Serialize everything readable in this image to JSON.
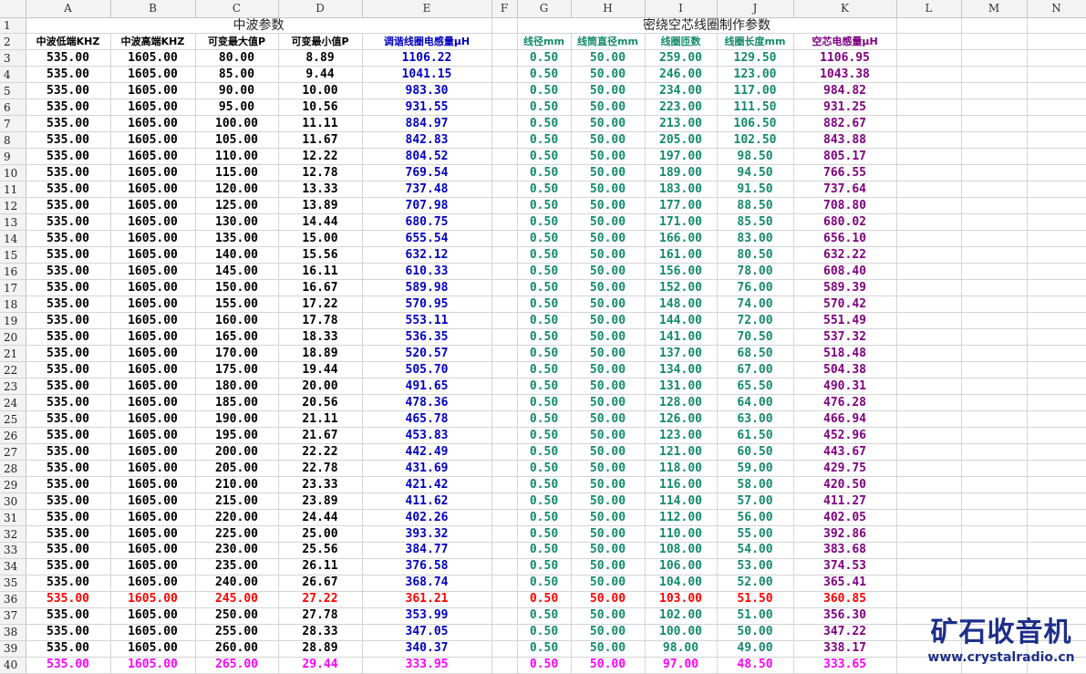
{
  "columns": [
    "A",
    "B",
    "C",
    "D",
    "E",
    "F",
    "G",
    "H",
    "I",
    "J",
    "K",
    "L",
    "M",
    "N"
  ],
  "row1": {
    "left_title": "中波参数",
    "right_title": "密绕空芯线圈制作参数"
  },
  "headers": {
    "A": "中波低端KHZ",
    "B": "中波高端KHZ",
    "C": "可变最大值P",
    "D": "可变最小值P",
    "E": "调谐线圈电感量μH",
    "G": "线径mm",
    "H": "线筒直径mm",
    "I": "线圈匝数",
    "J": "线圈长度mm",
    "K": "空芯电感量μH"
  },
  "colors": {
    "black": "#000000",
    "blue": "#0000c0",
    "green": "#138a6b",
    "purple": "#800080",
    "red": "#ff0000",
    "magenta": "#ff00ff"
  },
  "rows": [
    {
      "n": "3",
      "A": "535.00",
      "B": "1605.00",
      "C": "80.00",
      "D": "8.89",
      "E": "1106.22",
      "G": "0.50",
      "H": "50.00",
      "I": "259.00",
      "J": "129.50",
      "K": "1106.95"
    },
    {
      "n": "4",
      "A": "535.00",
      "B": "1605.00",
      "C": "85.00",
      "D": "9.44",
      "E": "1041.15",
      "G": "0.50",
      "H": "50.00",
      "I": "246.00",
      "J": "123.00",
      "K": "1043.38"
    },
    {
      "n": "5",
      "A": "535.00",
      "B": "1605.00",
      "C": "90.00",
      "D": "10.00",
      "E": "983.30",
      "G": "0.50",
      "H": "50.00",
      "I": "234.00",
      "J": "117.00",
      "K": "984.82"
    },
    {
      "n": "6",
      "A": "535.00",
      "B": "1605.00",
      "C": "95.00",
      "D": "10.56",
      "E": "931.55",
      "G": "0.50",
      "H": "50.00",
      "I": "223.00",
      "J": "111.50",
      "K": "931.25"
    },
    {
      "n": "7",
      "A": "535.00",
      "B": "1605.00",
      "C": "100.00",
      "D": "11.11",
      "E": "884.97",
      "G": "0.50",
      "H": "50.00",
      "I": "213.00",
      "J": "106.50",
      "K": "882.67"
    },
    {
      "n": "8",
      "A": "535.00",
      "B": "1605.00",
      "C": "105.00",
      "D": "11.67",
      "E": "842.83",
      "G": "0.50",
      "H": "50.00",
      "I": "205.00",
      "J": "102.50",
      "K": "843.88"
    },
    {
      "n": "9",
      "A": "535.00",
      "B": "1605.00",
      "C": "110.00",
      "D": "12.22",
      "E": "804.52",
      "G": "0.50",
      "H": "50.00",
      "I": "197.00",
      "J": "98.50",
      "K": "805.17"
    },
    {
      "n": "10",
      "A": "535.00",
      "B": "1605.00",
      "C": "115.00",
      "D": "12.78",
      "E": "769.54",
      "G": "0.50",
      "H": "50.00",
      "I": "189.00",
      "J": "94.50",
      "K": "766.55"
    },
    {
      "n": "11",
      "A": "535.00",
      "B": "1605.00",
      "C": "120.00",
      "D": "13.33",
      "E": "737.48",
      "G": "0.50",
      "H": "50.00",
      "I": "183.00",
      "J": "91.50",
      "K": "737.64"
    },
    {
      "n": "12",
      "A": "535.00",
      "B": "1605.00",
      "C": "125.00",
      "D": "13.89",
      "E": "707.98",
      "G": "0.50",
      "H": "50.00",
      "I": "177.00",
      "J": "88.50",
      "K": "708.80"
    },
    {
      "n": "13",
      "A": "535.00",
      "B": "1605.00",
      "C": "130.00",
      "D": "14.44",
      "E": "680.75",
      "G": "0.50",
      "H": "50.00",
      "I": "171.00",
      "J": "85.50",
      "K": "680.02"
    },
    {
      "n": "14",
      "A": "535.00",
      "B": "1605.00",
      "C": "135.00",
      "D": "15.00",
      "E": "655.54",
      "G": "0.50",
      "H": "50.00",
      "I": "166.00",
      "J": "83.00",
      "K": "656.10"
    },
    {
      "n": "15",
      "A": "535.00",
      "B": "1605.00",
      "C": "140.00",
      "D": "15.56",
      "E": "632.12",
      "G": "0.50",
      "H": "50.00",
      "I": "161.00",
      "J": "80.50",
      "K": "632.22"
    },
    {
      "n": "16",
      "A": "535.00",
      "B": "1605.00",
      "C": "145.00",
      "D": "16.11",
      "E": "610.33",
      "G": "0.50",
      "H": "50.00",
      "I": "156.00",
      "J": "78.00",
      "K": "608.40"
    },
    {
      "n": "17",
      "A": "535.00",
      "B": "1605.00",
      "C": "150.00",
      "D": "16.67",
      "E": "589.98",
      "G": "0.50",
      "H": "50.00",
      "I": "152.00",
      "J": "76.00",
      "K": "589.39"
    },
    {
      "n": "18",
      "A": "535.00",
      "B": "1605.00",
      "C": "155.00",
      "D": "17.22",
      "E": "570.95",
      "G": "0.50",
      "H": "50.00",
      "I": "148.00",
      "J": "74.00",
      "K": "570.42"
    },
    {
      "n": "19",
      "A": "535.00",
      "B": "1605.00",
      "C": "160.00",
      "D": "17.78",
      "E": "553.11",
      "G": "0.50",
      "H": "50.00",
      "I": "144.00",
      "J": "72.00",
      "K": "551.49"
    },
    {
      "n": "20",
      "A": "535.00",
      "B": "1605.00",
      "C": "165.00",
      "D": "18.33",
      "E": "536.35",
      "G": "0.50",
      "H": "50.00",
      "I": "141.00",
      "J": "70.50",
      "K": "537.32"
    },
    {
      "n": "21",
      "A": "535.00",
      "B": "1605.00",
      "C": "170.00",
      "D": "18.89",
      "E": "520.57",
      "G": "0.50",
      "H": "50.00",
      "I": "137.00",
      "J": "68.50",
      "K": "518.48"
    },
    {
      "n": "22",
      "A": "535.00",
      "B": "1605.00",
      "C": "175.00",
      "D": "19.44",
      "E": "505.70",
      "G": "0.50",
      "H": "50.00",
      "I": "134.00",
      "J": "67.00",
      "K": "504.38"
    },
    {
      "n": "23",
      "A": "535.00",
      "B": "1605.00",
      "C": "180.00",
      "D": "20.00",
      "E": "491.65",
      "G": "0.50",
      "H": "50.00",
      "I": "131.00",
      "J": "65.50",
      "K": "490.31"
    },
    {
      "n": "24",
      "A": "535.00",
      "B": "1605.00",
      "C": "185.00",
      "D": "20.56",
      "E": "478.36",
      "G": "0.50",
      "H": "50.00",
      "I": "128.00",
      "J": "64.00",
      "K": "476.28"
    },
    {
      "n": "25",
      "A": "535.00",
      "B": "1605.00",
      "C": "190.00",
      "D": "21.11",
      "E": "465.78",
      "G": "0.50",
      "H": "50.00",
      "I": "126.00",
      "J": "63.00",
      "K": "466.94"
    },
    {
      "n": "26",
      "A": "535.00",
      "B": "1605.00",
      "C": "195.00",
      "D": "21.67",
      "E": "453.83",
      "G": "0.50",
      "H": "50.00",
      "I": "123.00",
      "J": "61.50",
      "K": "452.96"
    },
    {
      "n": "27",
      "A": "535.00",
      "B": "1605.00",
      "C": "200.00",
      "D": "22.22",
      "E": "442.49",
      "G": "0.50",
      "H": "50.00",
      "I": "121.00",
      "J": "60.50",
      "K": "443.67"
    },
    {
      "n": "28",
      "A": "535.00",
      "B": "1605.00",
      "C": "205.00",
      "D": "22.78",
      "E": "431.69",
      "G": "0.50",
      "H": "50.00",
      "I": "118.00",
      "J": "59.00",
      "K": "429.75"
    },
    {
      "n": "29",
      "A": "535.00",
      "B": "1605.00",
      "C": "210.00",
      "D": "23.33",
      "E": "421.42",
      "G": "0.50",
      "H": "50.00",
      "I": "116.00",
      "J": "58.00",
      "K": "420.50"
    },
    {
      "n": "30",
      "A": "535.00",
      "B": "1605.00",
      "C": "215.00",
      "D": "23.89",
      "E": "411.62",
      "G": "0.50",
      "H": "50.00",
      "I": "114.00",
      "J": "57.00",
      "K": "411.27"
    },
    {
      "n": "31",
      "A": "535.00",
      "B": "1605.00",
      "C": "220.00",
      "D": "24.44",
      "E": "402.26",
      "G": "0.50",
      "H": "50.00",
      "I": "112.00",
      "J": "56.00",
      "K": "402.05"
    },
    {
      "n": "32",
      "A": "535.00",
      "B": "1605.00",
      "C": "225.00",
      "D": "25.00",
      "E": "393.32",
      "G": "0.50",
      "H": "50.00",
      "I": "110.00",
      "J": "55.00",
      "K": "392.86"
    },
    {
      "n": "33",
      "A": "535.00",
      "B": "1605.00",
      "C": "230.00",
      "D": "25.56",
      "E": "384.77",
      "G": "0.50",
      "H": "50.00",
      "I": "108.00",
      "J": "54.00",
      "K": "383.68"
    },
    {
      "n": "34",
      "A": "535.00",
      "B": "1605.00",
      "C": "235.00",
      "D": "26.11",
      "E": "376.58",
      "G": "0.50",
      "H": "50.00",
      "I": "106.00",
      "J": "53.00",
      "K": "374.53"
    },
    {
      "n": "35",
      "A": "535.00",
      "B": "1605.00",
      "C": "240.00",
      "D": "26.67",
      "E": "368.74",
      "G": "0.50",
      "H": "50.00",
      "I": "104.00",
      "J": "52.00",
      "K": "365.41"
    },
    {
      "n": "36",
      "A": "535.00",
      "B": "1605.00",
      "C": "245.00",
      "D": "27.22",
      "E": "361.21",
      "G": "0.50",
      "H": "50.00",
      "I": "103.00",
      "J": "51.50",
      "K": "360.85",
      "highlight": "red"
    },
    {
      "n": "37",
      "A": "535.00",
      "B": "1605.00",
      "C": "250.00",
      "D": "27.78",
      "E": "353.99",
      "G": "0.50",
      "H": "50.00",
      "I": "102.00",
      "J": "51.00",
      "K": "356.30"
    },
    {
      "n": "38",
      "A": "535.00",
      "B": "1605.00",
      "C": "255.00",
      "D": "28.33",
      "E": "347.05",
      "G": "0.50",
      "H": "50.00",
      "I": "100.00",
      "J": "50.00",
      "K": "347.22"
    },
    {
      "n": "39",
      "A": "535.00",
      "B": "1605.00",
      "C": "260.00",
      "D": "28.89",
      "E": "340.37",
      "G": "0.50",
      "H": "50.00",
      "I": "98.00",
      "J": "49.00",
      "K": "338.17"
    },
    {
      "n": "40",
      "A": "535.00",
      "B": "1605.00",
      "C": "265.00",
      "D": "29.44",
      "E": "333.95",
      "G": "0.50",
      "H": "50.00",
      "I": "97.00",
      "J": "48.50",
      "K": "333.65",
      "highlight": "magenta"
    }
  ],
  "watermark": {
    "name": "矿石收音机",
    "url": "www.crystalradio.cn"
  }
}
